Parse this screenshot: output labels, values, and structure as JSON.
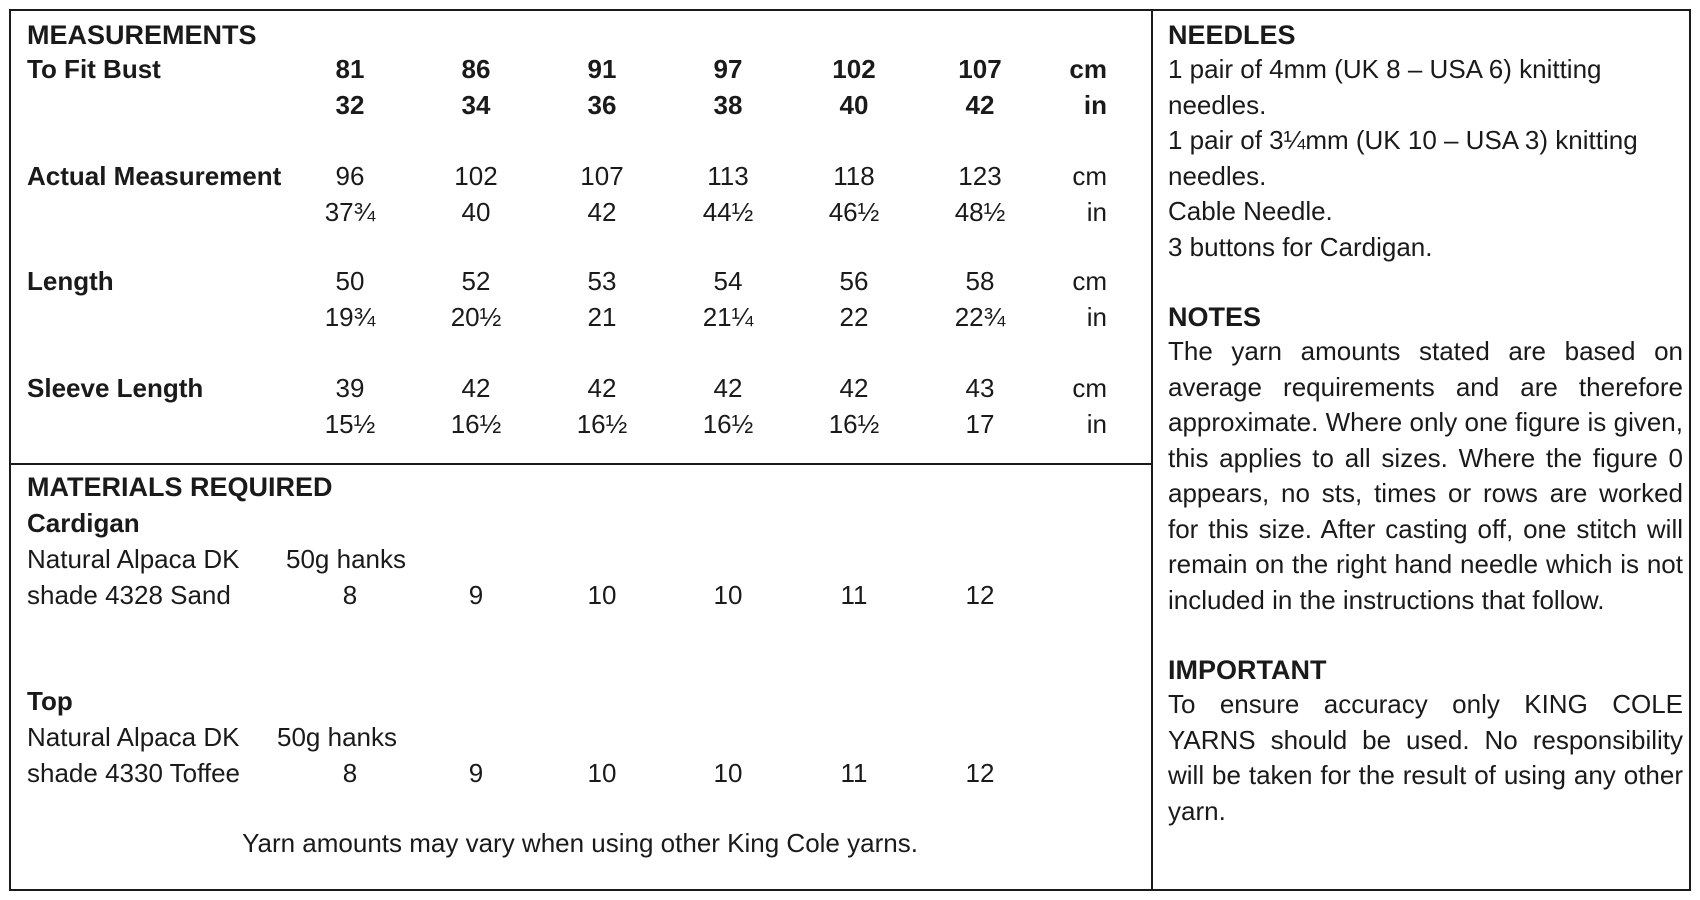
{
  "measurements": {
    "title": "MEASUREMENTS",
    "rows": [
      {
        "label": "To Fit Bust",
        "cm": [
          "81",
          "86",
          "91",
          "97",
          "102",
          "107"
        ],
        "in": [
          "32",
          "34",
          "36",
          "38",
          "40",
          "42"
        ]
      },
      {
        "label": "Actual Measurement",
        "cm": [
          "96",
          "102",
          "107",
          "113",
          "118",
          "123"
        ],
        "in": [
          "37¾",
          "40",
          "42",
          "44½",
          "46½",
          "48½"
        ]
      },
      {
        "label": "Length",
        "cm": [
          "50",
          "52",
          "53",
          "54",
          "56",
          "58"
        ],
        "in": [
          "19¾",
          "20½",
          "21",
          "21¼",
          "22",
          "22¾"
        ]
      },
      {
        "label": "Sleeve Length",
        "cm": [
          "39",
          "42",
          "42",
          "42",
          "42",
          "43"
        ],
        "in": [
          "15½",
          "16½",
          "16½",
          "16½",
          "16½",
          "17"
        ]
      }
    ],
    "unit_cm": "cm",
    "unit_in": "in"
  },
  "materials": {
    "title": "MATERIALS REQUIRED",
    "cardigan": {
      "heading": "Cardigan",
      "yarn": "Natural Alpaca DK",
      "unit": "50g hanks",
      "shade": "shade 4328 Sand",
      "amounts": [
        "8",
        "9",
        "10",
        "10",
        "11",
        "12"
      ]
    },
    "top": {
      "heading": "Top",
      "yarn": "Natural Alpaca DK",
      "unit": "50g hanks",
      "shade": "shade 4330 Toffee",
      "amounts": [
        "8",
        "9",
        "10",
        "10",
        "11",
        "12"
      ]
    },
    "footnote": "Yarn amounts may vary when using other King Cole yarns."
  },
  "needles": {
    "title": "NEEDLES",
    "lines": [
      "1 pair of 4mm (UK 8 – USA 6) knitting",
      "needles.",
      "1 pair of 3¼mm (UK 10 – USA 3) knitting",
      "needles.",
      "Cable Needle.",
      "3 buttons for Cardigan."
    ]
  },
  "notes": {
    "title": "NOTES",
    "text": "The yarn amounts stated are based on average requirements and are therefore approximate. Where only one figure is given, this applies to all sizes. Where the figure 0 appears, no sts, times or rows are worked for this size. After casting off, one stitch will remain on the right hand needle which is not included in the instructions that follow."
  },
  "important": {
    "title": "IMPORTANT",
    "text": "To ensure accuracy only KING COLE YARNS should be used. No responsibility will be taken for the result of using any other yarn."
  }
}
